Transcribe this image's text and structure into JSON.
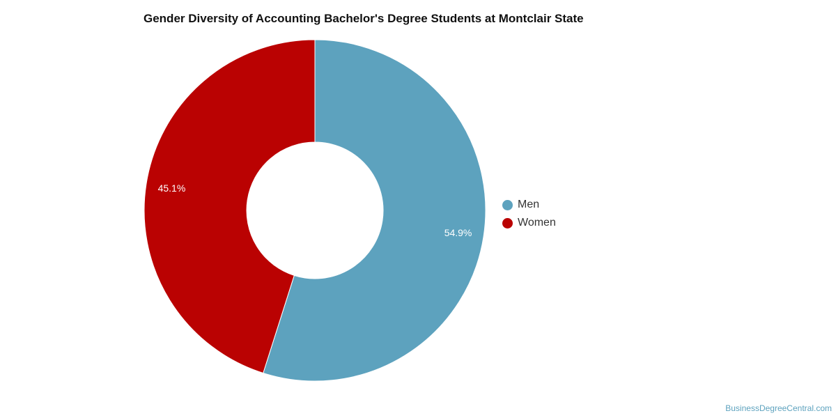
{
  "chart_data": {
    "type": "pie",
    "title": "Gender Diversity of Accounting Bachelor's Degree Students at Montclair State",
    "categories": [
      "Men",
      "Women"
    ],
    "values": [
      54.9,
      45.1
    ],
    "labels": [
      "54.9%",
      "45.1%"
    ],
    "colors": [
      "#5da2be",
      "#ba0202"
    ],
    "donut": true,
    "legend": "right"
  },
  "watermark": "BusinessDegreeCentral.com"
}
